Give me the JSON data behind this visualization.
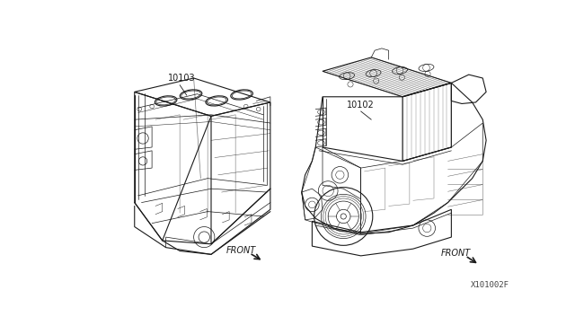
{
  "background_color": "#ffffff",
  "fig_width": 6.4,
  "fig_height": 3.72,
  "dpi": 100,
  "label_left_part": "10103",
  "label_right_part": "10102",
  "front_label": "FRONT",
  "catalog_number": "X101002F",
  "line_color": "#1a1a1a",
  "gray_color": "#666666",
  "light_gray": "#aaaaaa"
}
